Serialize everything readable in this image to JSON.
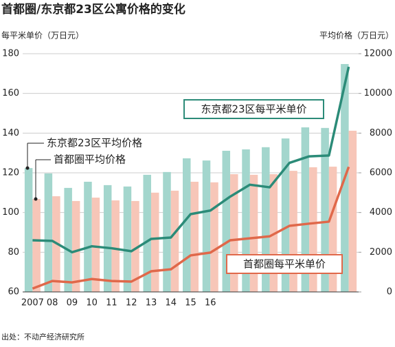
{
  "chart_data": {
    "type": "bar",
    "title": "首都圈/东京都23区公寓价格的变化",
    "ylabel": "每平米单价（万日元）",
    "y2label": "平均价格（万日元）",
    "source": "出处：不动产经济研究所",
    "categories": [
      "2007",
      "08",
      "09",
      "10",
      "11",
      "12",
      "13",
      "14",
      "15",
      "16",
      null,
      null,
      null,
      null,
      null,
      null,
      null
    ],
    "ylim": [
      60,
      180
    ],
    "yticks": [
      60,
      80,
      100,
      120,
      140,
      160,
      180
    ],
    "y2lim": [
      0,
      12000
    ],
    "y2ticks": [
      0,
      2000,
      4000,
      6000,
      8000,
      10000,
      12000
    ],
    "grid": true,
    "series": [
      {
        "name": "东京都23区平均价格",
        "type": "bar",
        "axis": "y2",
        "color": "#a3d6cd",
        "values": [
          6240,
          5970,
          5240,
          5550,
          5380,
          5310,
          5900,
          6040,
          6730,
          6620,
          7110,
          7180,
          7290,
          7730,
          8290,
          8260,
          11480
        ]
      },
      {
        "name": "首都圈平均价格",
        "type": "bar",
        "axis": "y2",
        "color": "#f7c6b8",
        "values": [
          4680,
          4820,
          4580,
          4750,
          4610,
          4580,
          5000,
          5100,
          5550,
          5520,
          5930,
          5900,
          5930,
          6100,
          6280,
          6310,
          8120
        ]
      },
      {
        "name": "东京都23区每平米单价",
        "type": "line",
        "color": "#2b8b78",
        "values": [
          86,
          85.7,
          80,
          83,
          82,
          80.5,
          86.7,
          87.4,
          99.2,
          101,
          108,
          114,
          112.7,
          125,
          128.3,
          128.7,
          173.4
        ]
      },
      {
        "name": "首都圈每平米单价",
        "type": "line",
        "color": "#e0684a",
        "values": [
          61.7,
          65.5,
          64.8,
          66.5,
          65.5,
          65.2,
          70.4,
          71.4,
          78.4,
          79.8,
          86,
          87,
          88,
          93.3,
          94.4,
          95.4,
          123
        ]
      }
    ]
  }
}
